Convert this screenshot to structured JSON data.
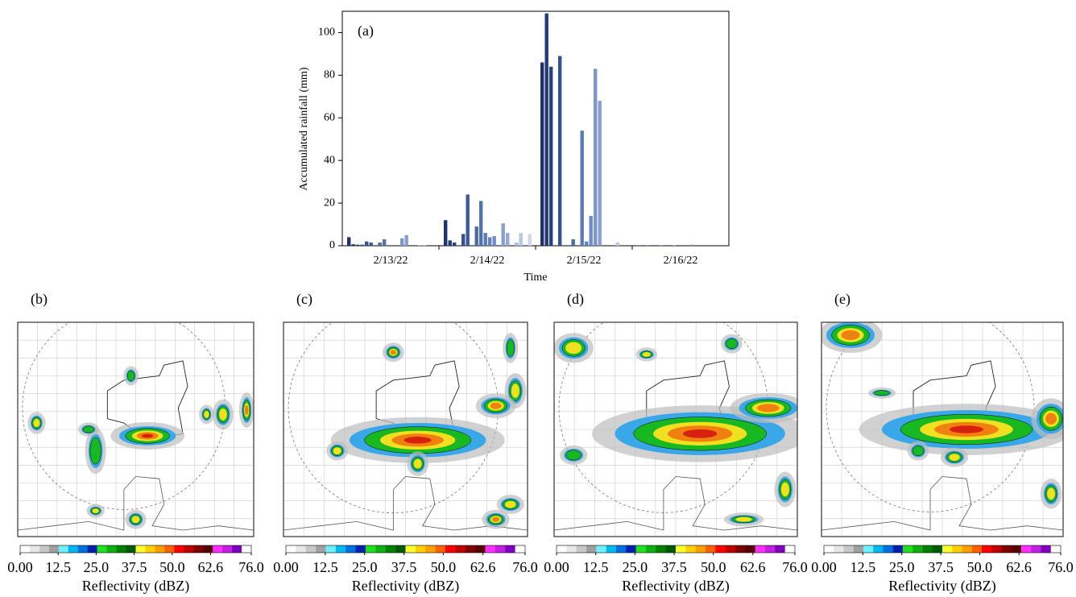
{
  "chart_data": {
    "type": "bar",
    "annotation": "(a)",
    "ylabel": "Accumulated rainfall (mm)",
    "xlabel": "Time",
    "categories": [
      "2/13/22",
      "2/14/22",
      "2/15/22",
      "2/16/22"
    ],
    "ylim": [
      0,
      110
    ],
    "yticks": [
      0,
      20,
      40,
      60,
      80,
      100
    ],
    "series": [
      {
        "color": "#1c3370",
        "values": [
          4,
          12,
          86,
          0.2
        ]
      },
      {
        "color": "#223a78",
        "values": [
          0.7,
          2.5,
          109,
          0
        ]
      },
      {
        "color": "#284280",
        "values": [
          0.5,
          1.5,
          84,
          0.2
        ]
      },
      {
        "color": "#2e4a88",
        "values": [
          0.5,
          0,
          0,
          0
        ]
      },
      {
        "color": "#345290",
        "values": [
          2,
          5.5,
          89,
          0
        ]
      },
      {
        "color": "#3a5a98",
        "values": [
          1.5,
          24,
          0,
          0.2
        ]
      },
      {
        "color": "#4262a0",
        "values": [
          0,
          0,
          0,
          0
        ]
      },
      {
        "color": "#4a6aa8",
        "values": [
          1.5,
          9,
          3,
          0
        ]
      },
      {
        "color": "#5272b0",
        "values": [
          3,
          21,
          0,
          0.2
        ]
      },
      {
        "color": "#5a7bb8",
        "values": [
          0,
          6,
          54,
          0
        ]
      },
      {
        "color": "#6484c0",
        "values": [
          0,
          4,
          2,
          0
        ]
      },
      {
        "color": "#6e8dc6",
        "values": [
          0,
          4.5,
          14,
          0
        ]
      },
      {
        "color": "#7a97cc",
        "values": [
          3.5,
          0,
          83,
          0.5
        ]
      },
      {
        "color": "#86a0d2",
        "values": [
          5,
          10.5,
          68,
          0
        ]
      },
      {
        "color": "#92aad8",
        "values": [
          0,
          6,
          0,
          0
        ]
      },
      {
        "color": "#9fb4dc",
        "values": [
          0,
          0,
          0,
          0
        ]
      },
      {
        "color": "#acbde0",
        "values": [
          0.3,
          1.5,
          0,
          0
        ]
      },
      {
        "color": "#b9c6e4",
        "values": [
          0.3,
          6,
          1.5,
          0
        ]
      },
      {
        "color": "#c5cfe8",
        "values": [
          0,
          0,
          0,
          0
        ]
      },
      {
        "color": "#d0d7ec",
        "values": [
          0,
          5.5,
          0,
          0
        ]
      }
    ]
  },
  "panels": [
    {
      "label": "(b)"
    },
    {
      "label": "(c)"
    },
    {
      "label": "(d)"
    },
    {
      "label": "(e)"
    }
  ],
  "colorbar": {
    "label": "Reflectivity (dBZ)",
    "lim": [
      0,
      76
    ],
    "ticks": [
      {
        "value": 0,
        "label": "0.00"
      },
      12.5,
      {
        "value": 25,
        "label": "25.0"
      },
      37.5,
      {
        "value": 50,
        "label": "50.0"
      },
      62.6,
      {
        "value": 76,
        "label": "76.0"
      }
    ],
    "colors": [
      "#ffffff",
      "#e8e8e8",
      "#c8c8c8",
      "#a0a0a0",
      "#70f0ff",
      "#00b8f0",
      "#0070e0",
      "#0020b0",
      "#20e020",
      "#10b010",
      "#008000",
      "#005a00",
      "#ffff30",
      "#ffd000",
      "#ffa000",
      "#ff6000",
      "#ff0000",
      "#c00000",
      "#800000",
      "#580000",
      "#ff30ff",
      "#c020e0",
      "#8000c0",
      "#ffffff"
    ]
  }
}
